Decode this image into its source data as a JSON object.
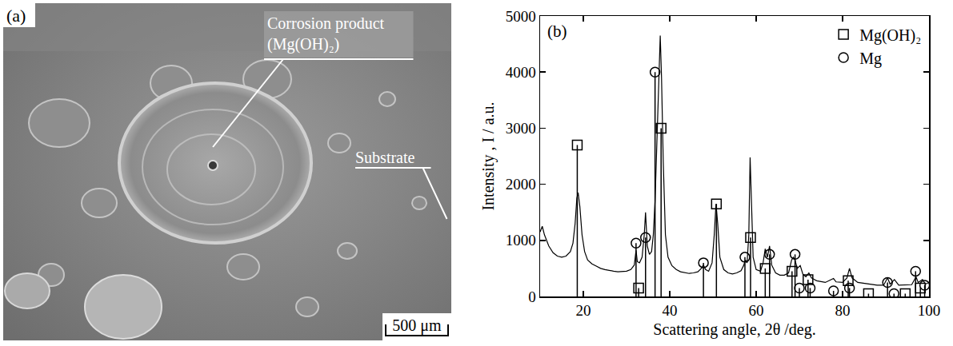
{
  "micrograph": {
    "label": "(a)",
    "callouts": [
      {
        "text": [
          "Corrosion product",
          "(Mg(OH)₂)"
        ]
      },
      {
        "text": [
          "Substrate"
        ]
      }
    ],
    "scale_bar": "500 μm"
  },
  "chart_data": {
    "type": "line",
    "label": "(b)",
    "xlabel": "Scattering angle, 2θ /deg.",
    "ylabel": "Intensity , I / a.u.",
    "xlim": [
      10,
      100
    ],
    "xticks": [
      20,
      40,
      60,
      80,
      100
    ],
    "ylim": [
      0,
      5000
    ],
    "yticks": [
      0,
      1000,
      2000,
      3000,
      4000,
      5000
    ],
    "grid": false,
    "legend": "upper right",
    "color": "#000000",
    "x": [
      10,
      10.5,
      11,
      12,
      13,
      14,
      15,
      16,
      17,
      17.6,
      18.1,
      18.5,
      18.8,
      19.2,
      19.7,
      20.3,
      21,
      22,
      23,
      24,
      25,
      26,
      27,
      28,
      29,
      30,
      31,
      31.8,
      32.2,
      32.5,
      33,
      33.6,
      34.1,
      34.4,
      34.8,
      35.3,
      35.8,
      36.2,
      36.6,
      37.0,
      37.4,
      37.8,
      38.1,
      38.5,
      39,
      39.6,
      40.5,
      41.5,
      42.5,
      43.5,
      44.5,
      45.5,
      46.5,
      47.3,
      47.8,
      48.3,
      49,
      49.8,
      50.3,
      50.7,
      51.1,
      51.6,
      52.5,
      53.5,
      54.5,
      55.5,
      56.5,
      57.1,
      57.5,
      57.9,
      58.3,
      58.6,
      58.9,
      59.3,
      60,
      61,
      61.6,
      62.1,
      62.6,
      63.1,
      63.6,
      64.5,
      65.5,
      66.5,
      67.5,
      68.2,
      68.6,
      69.0,
      69.5,
      70.2,
      70.8,
      71.5,
      72.2,
      72.8,
      74,
      76,
      77.9,
      78.5,
      80,
      81,
      81.6,
      82.2,
      83.5,
      85,
      86.5,
      88,
      89.5,
      90.4,
      91,
      92,
      93,
      94.5,
      96,
      97,
      97.5,
      98.5,
      99.2,
      100
    ],
    "values": [
      1150,
      1250,
      1100,
      900,
      780,
      720,
      700,
      720,
      800,
      950,
      1300,
      1750,
      1850,
      1600,
      1100,
      800,
      650,
      580,
      540,
      500,
      480,
      460,
      450,
      440,
      440,
      450,
      480,
      560,
      820,
      620,
      600,
      700,
      1100,
      1500,
      900,
      750,
      800,
      1100,
      1700,
      2600,
      3600,
      4650,
      3900,
      2400,
      1100,
      700,
      550,
      480,
      440,
      420,
      410,
      420,
      440,
      500,
      560,
      480,
      450,
      600,
      1100,
      1650,
      1300,
      700,
      480,
      420,
      400,
      420,
      460,
      550,
      650,
      600,
      1100,
      2480,
      1600,
      700,
      480,
      450,
      600,
      850,
      700,
      900,
      560,
      420,
      380,
      380,
      420,
      650,
      700,
      650,
      500,
      550,
      400,
      350,
      420,
      330,
      280,
      250,
      320,
      260,
      250,
      330,
      500,
      330,
      250,
      230,
      220,
      200,
      200,
      330,
      220,
      300,
      200,
      200,
      210,
      350,
      250,
      300,
      220,
      250
    ],
    "series": [
      {
        "name": "Mg(OH)₂",
        "type": "stem",
        "marker": "square-open",
        "color": "#000000",
        "x": [
          18.6,
          32.8,
          38.0,
          50.8,
          58.7,
          62.1,
          68.3,
          72.0,
          81.3,
          86.0,
          94.5,
          98.0
        ],
        "values": [
          2700,
          150,
          3000,
          1650,
          1050,
          500,
          450,
          300,
          280,
          50,
          50,
          150
        ]
      },
      {
        "name": "Mg",
        "type": "stem",
        "marker": "circle-open",
        "color": "#000000",
        "x": [
          32.2,
          34.4,
          36.6,
          47.8,
          57.4,
          63.1,
          69.0,
          70.0,
          72.5,
          77.9,
          81.6,
          90.4,
          91.9,
          96.9,
          99.0
        ],
        "values": [
          950,
          1050,
          4000,
          600,
          700,
          750,
          750,
          150,
          150,
          100,
          150,
          250,
          50,
          450,
          200
        ]
      }
    ]
  }
}
